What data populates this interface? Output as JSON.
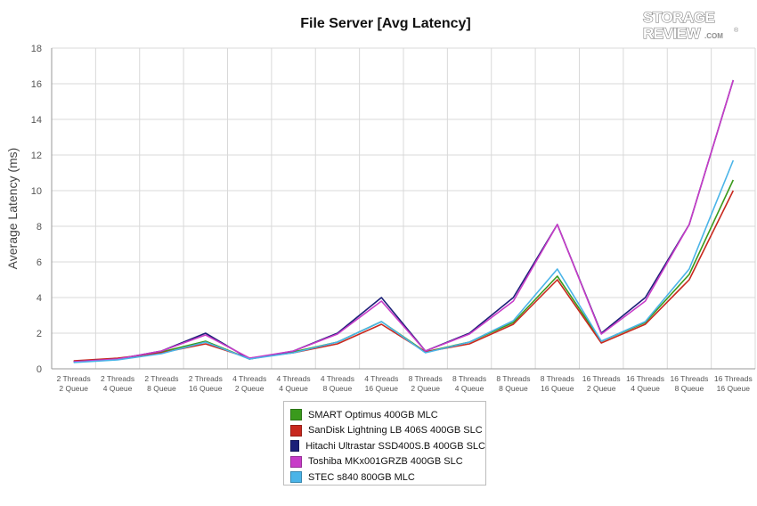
{
  "chart_data": {
    "type": "line",
    "title": "File Server [Avg Latency]",
    "ylabel": "Average Latency (ms)",
    "xlabel": "",
    "ylim": [
      0,
      18
    ],
    "yticks": [
      0,
      2,
      4,
      6,
      8,
      10,
      12,
      14,
      16,
      18
    ],
    "grid": true,
    "legend_position": "bottom-center",
    "categories": [
      [
        "2 Threads",
        "2 Queue"
      ],
      [
        "2 Threads",
        "4 Queue"
      ],
      [
        "2 Threads",
        "8 Queue"
      ],
      [
        "2 Threads",
        "16 Queue"
      ],
      [
        "4 Threads",
        "2 Queue"
      ],
      [
        "4 Threads",
        "4 Queue"
      ],
      [
        "4 Threads",
        "8 Queue"
      ],
      [
        "4 Threads",
        "16 Queue"
      ],
      [
        "8 Threads",
        "2 Queue"
      ],
      [
        "8 Threads",
        "4 Queue"
      ],
      [
        "8 Threads",
        "8 Queue"
      ],
      [
        "8 Threads",
        "16 Queue"
      ],
      [
        "16 Threads",
        "2 Queue"
      ],
      [
        "16 Threads",
        "4 Queue"
      ],
      [
        "16 Threads",
        "8 Queue"
      ],
      [
        "16 Threads",
        "16 Queue"
      ]
    ],
    "series": [
      {
        "name": "SMART Optimus 400GB MLC",
        "color": "#3a9a1c",
        "values": [
          0.4,
          0.55,
          0.95,
          1.55,
          0.55,
          0.95,
          1.5,
          2.65,
          0.95,
          1.5,
          2.6,
          5.2,
          1.55,
          2.6,
          5.3,
          10.6
        ]
      },
      {
        "name": "SanDisk Lightning LB 406S 400GB SLC",
        "color": "#c8281e",
        "values": [
          0.45,
          0.6,
          0.9,
          1.4,
          0.6,
          0.9,
          1.4,
          2.5,
          0.95,
          1.4,
          2.5,
          5.0,
          1.45,
          2.5,
          5.0,
          10.0
        ]
      },
      {
        "name": "Hitachi Ultrastar SSD400S.B 400GB SLC",
        "color": "#1c1f78",
        "values": [
          0.4,
          0.55,
          1.0,
          2.0,
          0.55,
          1.0,
          2.0,
          4.0,
          1.0,
          2.0,
          4.0,
          8.1,
          2.0,
          4.0,
          8.1,
          16.2
        ]
      },
      {
        "name": "Toshiba MKx001GRZB 400GB SLC",
        "color": "#c83cc8",
        "values": [
          0.4,
          0.55,
          1.0,
          1.9,
          0.6,
          1.0,
          1.95,
          3.8,
          1.0,
          1.95,
          3.8,
          8.1,
          1.95,
          3.8,
          8.1,
          16.2
        ]
      },
      {
        "name": "STEC s840 800GB MLC",
        "color": "#4ab4e8",
        "values": [
          0.35,
          0.5,
          0.85,
          1.5,
          0.55,
          0.9,
          1.5,
          2.65,
          0.9,
          1.5,
          2.7,
          5.6,
          1.55,
          2.65,
          5.6,
          11.7
        ]
      }
    ]
  },
  "logo": {
    "line1": "STORAGE",
    "line2": "REVIEW",
    "suffix": ".COM"
  }
}
